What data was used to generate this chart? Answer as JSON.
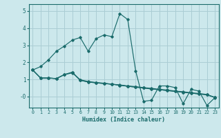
{
  "xlabel": "Humidex (Indice chaleur)",
  "bg_color": "#cce8ec",
  "grid_color": "#aacdd4",
  "line_color": "#1a6b6b",
  "xlim": [
    -0.5,
    23.5
  ],
  "ylim": [
    -0.65,
    5.4
  ],
  "yticks": [
    0,
    1,
    2,
    3,
    4,
    5
  ],
  "ytick_labels": [
    "-0",
    "1",
    "2",
    "3",
    "4",
    "5"
  ],
  "xticks": [
    0,
    1,
    2,
    3,
    4,
    5,
    6,
    7,
    8,
    9,
    10,
    11,
    12,
    13,
    14,
    15,
    16,
    17,
    18,
    19,
    20,
    21,
    22,
    23
  ],
  "series": [
    [
      1.55,
      1.08,
      1.08,
      1.05,
      1.28,
      1.38,
      0.98,
      0.88,
      0.82,
      0.78,
      0.72,
      0.68,
      0.62,
      0.58,
      0.52,
      0.48,
      0.42,
      0.38,
      0.32,
      0.28,
      0.22,
      0.18,
      0.12,
      -0.05
    ],
    [
      1.55,
      1.75,
      2.15,
      2.65,
      2.95,
      3.3,
      3.45,
      2.65,
      3.38,
      3.6,
      3.5,
      4.85,
      4.5,
      1.5,
      -0.28,
      -0.22,
      0.62,
      0.62,
      0.52,
      -0.42,
      0.42,
      0.32,
      -0.52,
      -0.07
    ],
    [
      1.55,
      1.08,
      1.08,
      1.05,
      1.28,
      1.42,
      0.95,
      0.85,
      0.8,
      0.76,
      0.72,
      0.66,
      0.6,
      0.55,
      0.5,
      0.44,
      0.4,
      0.35,
      0.3,
      0.25,
      0.2,
      0.15,
      0.1,
      -0.05
    ],
    [
      1.55,
      1.08,
      1.08,
      1.05,
      1.28,
      1.42,
      0.95,
      0.85,
      0.8,
      0.76,
      0.72,
      0.66,
      0.6,
      0.55,
      0.5,
      0.44,
      0.4,
      0.35,
      0.3,
      0.25,
      0.2,
      0.15,
      0.1,
      -0.05
    ]
  ]
}
